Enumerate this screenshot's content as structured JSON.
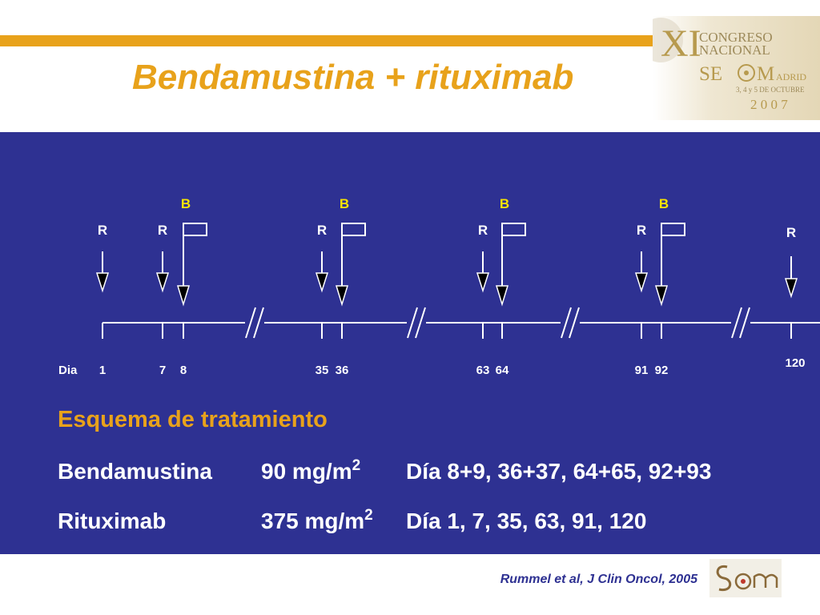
{
  "header": {
    "title": "Bendamustina + rituximab"
  },
  "conference_logo": {
    "roman": "XI",
    "line1": "CONGRESO",
    "line2": "NACIONAL",
    "org_left": "SE",
    "org_right": "M",
    "city": "ADRID",
    "dates": "3, 4 y 5 DE OCTUBRE",
    "year": "2 0 0 7"
  },
  "timeline": {
    "day_label": "Dia",
    "rituximab_marker": "R",
    "bendamustine_marker": "B",
    "rituximab_days": [
      "1",
      "7",
      "35",
      "63",
      "91",
      "120"
    ],
    "bendamustine_days": [
      "8",
      "36",
      "64",
      "92"
    ]
  },
  "schedule": {
    "heading": "Esquema de tratamiento",
    "rows": [
      {
        "drug": "Bendamustina",
        "dose": "90 mg/m",
        "dose_sup": "2",
        "days": "Día 8+9, 36+37, 64+65, 92+93"
      },
      {
        "drug": "Rituximab",
        "dose": "375 mg/m",
        "dose_sup": "2",
        "days": "Día 1, 7, 35, 63, 91, 120"
      }
    ]
  },
  "footer": {
    "citation": "Rummel et al, J Clin Oncol, 2005"
  },
  "colors": {
    "accent": "#e8a21b",
    "panel": "#2e3192",
    "marker_b": "#f5e300",
    "white": "#ffffff"
  },
  "icons": {
    "rituximab_dose": "down-arrow-icon",
    "bendamustine_dose": "flag-arrow-icon",
    "axis_break": "double-slash-icon"
  }
}
